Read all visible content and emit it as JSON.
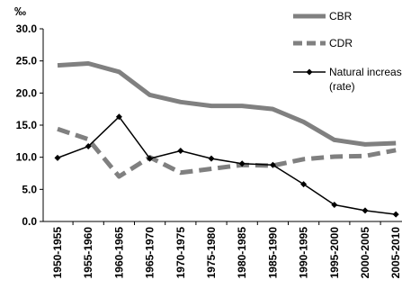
{
  "chart_data": {
    "type": "line",
    "title": "",
    "xlabel": "",
    "ylabel": "‰",
    "ylim": [
      0,
      30
    ],
    "y_ticks": [
      "0.0",
      "5.0",
      "10.0",
      "15.0",
      "20.0",
      "25.0",
      "30.0"
    ],
    "grid": false,
    "legend_position": "top-right",
    "categories": [
      "1950-1955",
      "1955-1960",
      "1960-1965",
      "1965-1970",
      "1970-1975",
      "1975-1980",
      "1980-1985",
      "1985-1990",
      "1990-1995",
      "1995-2000",
      "2000-2005",
      "2005-2010"
    ],
    "series": [
      {
        "name": "CBR",
        "style": "thick-solid",
        "color": "#808080",
        "values": [
          24.3,
          24.6,
          23.3,
          19.7,
          18.6,
          18.0,
          18.0,
          17.5,
          15.5,
          12.7,
          12.0,
          12.2
        ]
      },
      {
        "name": "CDR",
        "style": "thick-dashed",
        "color": "#808080",
        "values": [
          14.4,
          12.8,
          7.0,
          10.0,
          7.6,
          8.2,
          8.8,
          8.7,
          9.7,
          10.1,
          10.2,
          11.1
        ]
      },
      {
        "name": "Natural increase (rate)",
        "legend_lines": [
          "Natural increase",
          "(rate)"
        ],
        "style": "thin-solid-diamond-markers",
        "color": "#000000",
        "values": [
          9.9,
          11.7,
          16.3,
          9.8,
          11.0,
          9.8,
          9.0,
          8.8,
          5.8,
          2.6,
          1.7,
          1.1
        ]
      }
    ]
  }
}
